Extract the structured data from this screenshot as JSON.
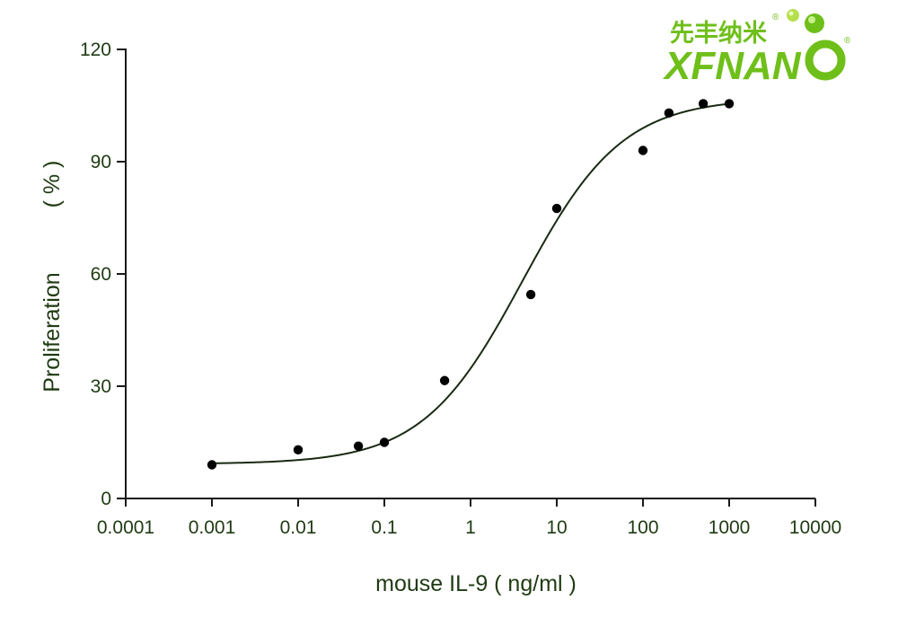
{
  "logo": {
    "chinese_text": "先丰纳米",
    "english_text": "XFNAN",
    "registered_mark": "®",
    "brand_color": "#6fbf1a"
  },
  "colors": {
    "axis": "#1a1a1a",
    "text": "#1f3a12",
    "curve": "#1a2a12",
    "points": "#000000"
  },
  "chart_data": {
    "type": "scatter",
    "title": "",
    "xlabel": "mouse IL-9 ( ng/ml )",
    "ylabel_main": "Proliferation",
    "ylabel_unit": "( % )",
    "x_scale": "log",
    "xlim": [
      0.0001,
      10000
    ],
    "ylim": [
      0,
      120
    ],
    "x_ticks": [
      "0.0001",
      "0.001",
      "0.01",
      "0.1",
      "1",
      "10",
      "100",
      "1000",
      "10000"
    ],
    "x_tick_values": [
      0.0001,
      0.001,
      0.01,
      0.1,
      1,
      10,
      100,
      1000,
      10000
    ],
    "y_ticks": [
      "0",
      "30",
      "60",
      "90",
      "120"
    ],
    "y_tick_values": [
      0,
      30,
      60,
      90,
      120
    ],
    "grid": false,
    "legend": "none",
    "points": [
      {
        "x": 0.001,
        "y": 9
      },
      {
        "x": 0.01,
        "y": 13
      },
      {
        "x": 0.05,
        "y": 14
      },
      {
        "x": 0.1,
        "y": 15
      },
      {
        "x": 0.5,
        "y": 31.5
      },
      {
        "x": 5,
        "y": 54.5
      },
      {
        "x": 10,
        "y": 77.5
      },
      {
        "x": 100,
        "y": 93
      },
      {
        "x": 200,
        "y": 103
      },
      {
        "x": 500,
        "y": 105.5
      },
      {
        "x": 1000,
        "y": 105.5
      }
    ],
    "fit_curve": {
      "model": "four-parameter logistic",
      "bottom": 9.2,
      "top": 107,
      "ec50": 4,
      "hill_slope": 0.75,
      "x_range": [
        0.001,
        1000
      ]
    }
  }
}
